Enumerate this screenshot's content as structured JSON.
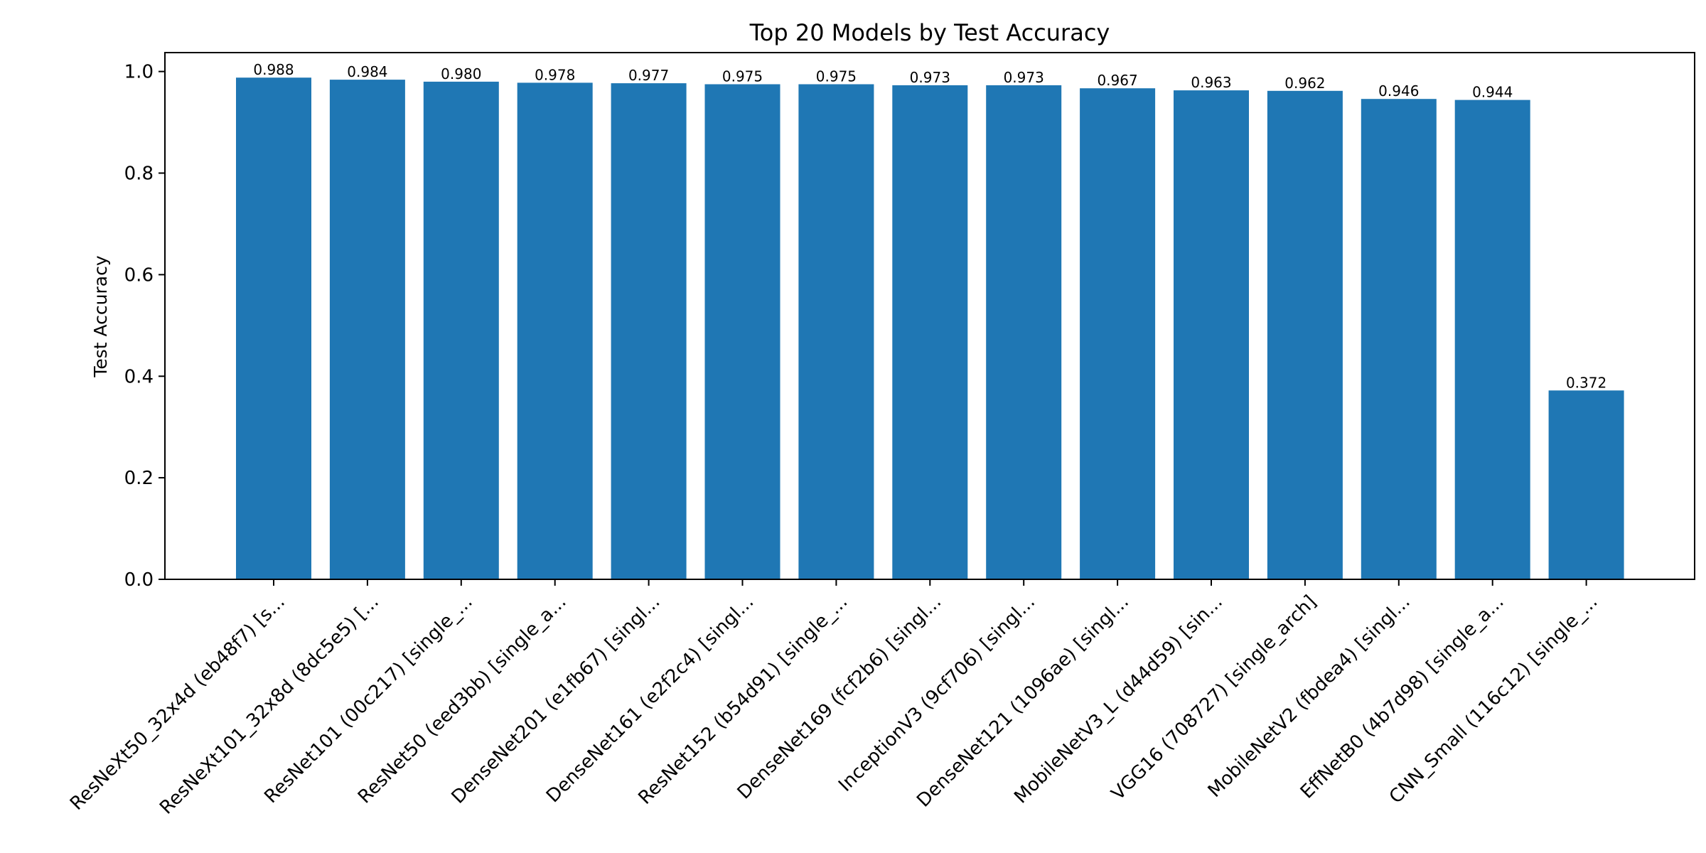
{
  "chart_data": {
    "type": "bar",
    "title": "Top 20 Models by Test Accuracy",
    "xlabel": "",
    "ylabel": "Test Accuracy",
    "ylim": [
      0,
      1.0373
    ],
    "yticks": [
      0.0,
      0.2,
      0.4,
      0.6,
      0.8,
      1.0
    ],
    "ytick_labels": [
      "0.0",
      "0.2",
      "0.4",
      "0.6",
      "0.8",
      "1.0"
    ],
    "grid": false,
    "legend": "none",
    "bar_color": "#1f77b4",
    "categories": [
      "ResNeXt50_32x4d (eb48f7) [s...",
      "ResNeXt101_32x8d (8dc5e5) [...",
      "ResNet101 (00c217) [single_...",
      "ResNet50 (eed3bb) [single_a...",
      "DenseNet201 (e1fb67) [singl...",
      "DenseNet161 (e2f2c4) [singl...",
      "ResNet152 (b54d91) [single_...",
      "DenseNet169 (fcf2b6) [singl...",
      "InceptionV3 (9cf706) [singl...",
      "DenseNet121 (1096ae) [singl...",
      "MobileNetV3_L (d44d59) [sin...",
      "VGG16 (708727) [single_arch]",
      "MobileNetV2 (fbdea4) [singl...",
      "EffNetB0 (4b7d98) [single_a...",
      "CNN_Small (116c12) [single_..."
    ],
    "values": [
      0.988,
      0.984,
      0.98,
      0.978,
      0.977,
      0.975,
      0.975,
      0.973,
      0.973,
      0.967,
      0.963,
      0.962,
      0.946,
      0.944,
      0.372
    ],
    "value_labels": [
      "0.988",
      "0.984",
      "0.980",
      "0.978",
      "0.977",
      "0.975",
      "0.975",
      "0.973",
      "0.973",
      "0.967",
      "0.963",
      "0.962",
      "0.946",
      "0.944",
      "0.372"
    ]
  }
}
